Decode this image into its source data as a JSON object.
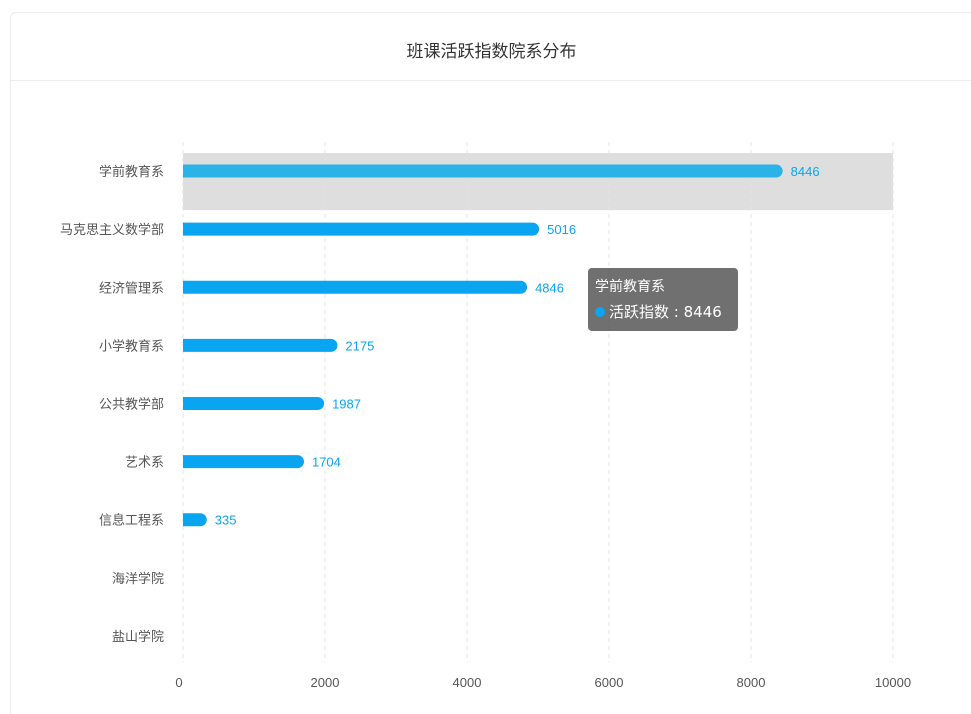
{
  "title": "班课活跃指数院系分布",
  "colors": {
    "bar": "#0aa5f0",
    "highlight_bar": "#2bb2e6",
    "label": "#0aa5f0",
    "highlight_band": "#dedede",
    "grid": "#e3e3e3",
    "axis_text": "#555555"
  },
  "chart_data": {
    "type": "bar",
    "orientation": "horizontal",
    "categories": [
      "学前教育系",
      "马克思主义数学部",
      "经济管理系",
      "小学教育系",
      "公共教学部",
      "艺术系",
      "信息工程系",
      "海洋学院",
      "盐山学院"
    ],
    "series": [
      {
        "name": "活跃指数",
        "values": [
          8446,
          5016,
          4846,
          2175,
          1987,
          1704,
          335,
          0,
          0
        ],
        "labels": [
          "8446",
          "5016",
          "4846",
          "2175",
          "1987",
          "1704",
          "335",
          "",
          ""
        ]
      }
    ],
    "xlim": [
      0,
      10000
    ],
    "xticks": [
      0,
      2000,
      4000,
      6000,
      8000,
      10000
    ],
    "xtick_labels": [
      "0",
      "2000",
      "4000",
      "6000",
      "8000",
      "10000"
    ],
    "grid": "vertical dashed",
    "highlighted_category": "学前教育系"
  },
  "tooltip": {
    "title": "学前教育系",
    "series_name": "活跃指数",
    "separator": " : ",
    "value": "8446"
  }
}
